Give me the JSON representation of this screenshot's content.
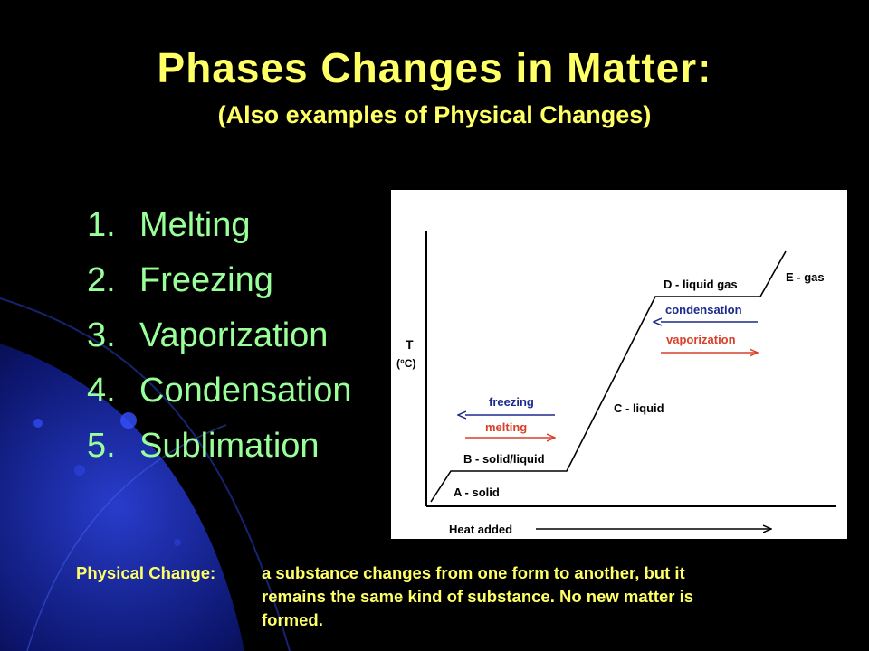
{
  "slide": {
    "title": "Phases Changes in Matter:",
    "subtitle": "(Also examples of Physical Changes)",
    "list": [
      {
        "num": "1.",
        "label": "Melting"
      },
      {
        "num": "2.",
        "label": "Freezing"
      },
      {
        "num": "3.",
        "label": "Vaporization"
      },
      {
        "num": "4.",
        "label": "Condensation"
      },
      {
        "num": "5.",
        "label": "Sublimation"
      }
    ],
    "definition": {
      "term": "Physical Change:",
      "line1": "a substance changes from one form to another, but it",
      "line2": "remains the same kind of substance.  No new matter is",
      "line3": "formed."
    }
  },
  "diagram": {
    "y_axis_label": "T",
    "y_axis_unit": "(°C)",
    "x_axis_label": "Heat added",
    "segments": {
      "a": "A - solid",
      "b": "B - solid/liquid",
      "c": "C - liquid",
      "d": "D - liquid gas",
      "e": "E - gas"
    },
    "arrows": {
      "freezing": "freezing",
      "melting": "melting",
      "condensation": "condensation",
      "vaporization": "vaporization"
    },
    "colors": {
      "cooling": "#1c2a8c",
      "heating": "#d9402b"
    }
  }
}
